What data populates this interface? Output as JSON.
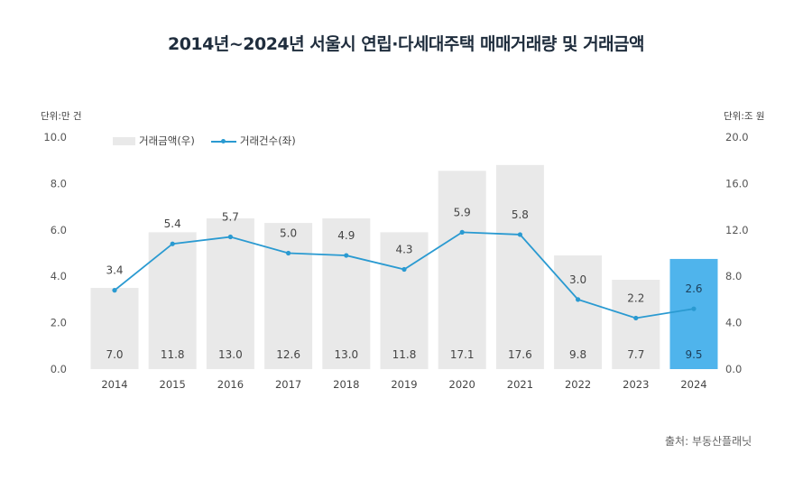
{
  "header": {
    "title": "2014년~2024년 서울시 연립·다세대주택 매매거래량 및 거래금액"
  },
  "units": {
    "left": "단위:만 건",
    "right": "단위:조 원"
  },
  "legend": {
    "bar_label": "거래금액(우)",
    "line_label": "거래건수(좌)"
  },
  "source": "출처: 부동산플래닛",
  "colors": {
    "bar": "#e9e9e9",
    "bar_highlight": "#4fb4ec",
    "line": "#2a9ad1",
    "text": "#444444"
  },
  "chart_data": {
    "type": "bar+line",
    "title": "2014년~2024년 서울시 연립·다세대주택 매매거래량 및 거래금액",
    "categories": [
      "2014",
      "2015",
      "2016",
      "2017",
      "2018",
      "2019",
      "2020",
      "2021",
      "2022",
      "2023",
      "2024"
    ],
    "series": [
      {
        "name": "거래금액(우)",
        "type": "bar",
        "axis": "right",
        "values": [
          7.0,
          11.8,
          13.0,
          12.6,
          13.0,
          11.8,
          17.1,
          17.6,
          9.8,
          7.7,
          9.5
        ],
        "labels": [
          "7.0",
          "11.8",
          "13.0",
          "12.6",
          "13.0",
          "11.8",
          "17.1",
          "17.6",
          "9.8",
          "7.7",
          "9.5"
        ],
        "highlight_index": 10
      },
      {
        "name": "거래건수(좌)",
        "type": "line",
        "axis": "left",
        "values": [
          3.4,
          5.4,
          5.7,
          5.0,
          4.9,
          4.3,
          5.9,
          5.8,
          3.0,
          2.2,
          2.6
        ],
        "labels": [
          "3.4",
          "5.4",
          "5.7",
          "5.0",
          "4.9",
          "4.3",
          "5.9",
          "5.8",
          "3.0",
          "2.2",
          "2.6"
        ]
      }
    ],
    "y_left": {
      "label": "단위:만 건",
      "lim": [
        0,
        10
      ],
      "ticks": [
        "0.0",
        "2.0",
        "4.0",
        "6.0",
        "8.0",
        "10.0"
      ],
      "tick_values": [
        0,
        2,
        4,
        6,
        8,
        10
      ]
    },
    "y_right": {
      "label": "단위:조 원",
      "lim": [
        0,
        20
      ],
      "ticks": [
        "0.0",
        "4.0",
        "8.0",
        "12.0",
        "16.0",
        "20.0"
      ],
      "tick_values": [
        0,
        4,
        8,
        12,
        16,
        20
      ]
    },
    "grid": false,
    "legend_position": "top-left"
  }
}
